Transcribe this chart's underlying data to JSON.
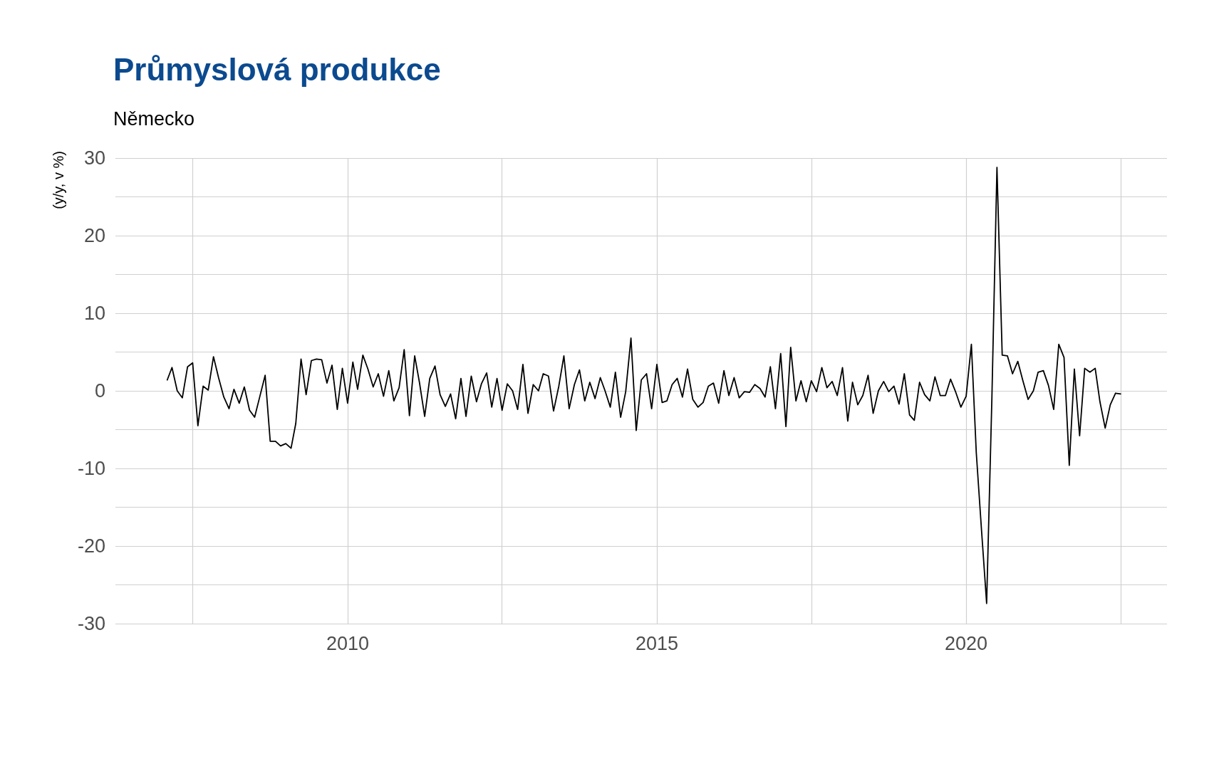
{
  "chart_data": {
    "type": "line",
    "title": "Průmyslová produkce",
    "subtitle": "Německo",
    "ylabel": "(y/y, v %)",
    "x": [
      "2007-02",
      "2007-03",
      "2007-04",
      "2007-05",
      "2007-06",
      "2007-07",
      "2007-08",
      "2007-09",
      "2007-10",
      "2007-11",
      "2007-12",
      "2008-01",
      "2008-02",
      "2008-03",
      "2008-04",
      "2008-05",
      "2008-06",
      "2008-07",
      "2008-08",
      "2008-09",
      "2008-10",
      "2008-11",
      "2008-12",
      "2009-01",
      "2009-02",
      "2009-03",
      "2009-04",
      "2009-05",
      "2009-06",
      "2009-07",
      "2009-08",
      "2009-09",
      "2009-10",
      "2009-11",
      "2009-12",
      "2010-01",
      "2010-02",
      "2010-03",
      "2010-04",
      "2010-05",
      "2010-06",
      "2010-07",
      "2010-08",
      "2010-09",
      "2010-10",
      "2010-11",
      "2010-12",
      "2011-01",
      "2011-02",
      "2011-03",
      "2011-04",
      "2011-05",
      "2011-06",
      "2011-07",
      "2011-08",
      "2011-09",
      "2011-10",
      "2011-11",
      "2011-12",
      "2012-01",
      "2012-02",
      "2012-03",
      "2012-04",
      "2012-05",
      "2012-06",
      "2012-07",
      "2012-08",
      "2012-09",
      "2012-10",
      "2012-11",
      "2012-12",
      "2013-01",
      "2013-02",
      "2013-03",
      "2013-04",
      "2013-05",
      "2013-06",
      "2013-07",
      "2013-08",
      "2013-09",
      "2013-10",
      "2013-11",
      "2013-12",
      "2014-01",
      "2014-02",
      "2014-03",
      "2014-04",
      "2014-05",
      "2014-06",
      "2014-07",
      "2014-08",
      "2014-09",
      "2014-10",
      "2014-11",
      "2014-12",
      "2015-01",
      "2015-02",
      "2015-03",
      "2015-04",
      "2015-05",
      "2015-06",
      "2015-07",
      "2015-08",
      "2015-09",
      "2015-10",
      "2015-11",
      "2015-12",
      "2016-01",
      "2016-02",
      "2016-03",
      "2016-04",
      "2016-05",
      "2016-06",
      "2016-07",
      "2016-08",
      "2016-09",
      "2016-10",
      "2016-11",
      "2016-12",
      "2017-01",
      "2017-02",
      "2017-03",
      "2017-04",
      "2017-05",
      "2017-06",
      "2017-07",
      "2017-08",
      "2017-09",
      "2017-10",
      "2017-11",
      "2017-12",
      "2018-01",
      "2018-02",
      "2018-03",
      "2018-04",
      "2018-05",
      "2018-06",
      "2018-07",
      "2018-08",
      "2018-09",
      "2018-10",
      "2018-11",
      "2018-12",
      "2019-01",
      "2019-02",
      "2019-03",
      "2019-04",
      "2019-05",
      "2019-06",
      "2019-07",
      "2019-08",
      "2019-09",
      "2019-10",
      "2019-11",
      "2019-12",
      "2020-01",
      "2020-02",
      "2020-03",
      "2020-04",
      "2020-05",
      "2020-06",
      "2020-07",
      "2020-08",
      "2020-09",
      "2020-10",
      "2020-11",
      "2020-12",
      "2021-01",
      "2021-02",
      "2021-03",
      "2021-04",
      "2021-05",
      "2021-06",
      "2021-07",
      "2021-08",
      "2021-09",
      "2021-10",
      "2021-11",
      "2021-12",
      "2022-01",
      "2022-02",
      "2022-03",
      "2022-04",
      "2022-05",
      "2022-06",
      "2022-07"
    ],
    "series": [
      {
        "color": "#000000",
        "values": [
          1.4,
          3.0,
          0.0,
          -0.9,
          3.1,
          3.6,
          -4.5,
          0.6,
          0.1,
          4.4,
          1.7,
          -0.8,
          -2.3,
          0.2,
          -1.6,
          0.5,
          -2.5,
          -3.4,
          -0.7,
          2.0,
          -6.5,
          -6.5,
          -7.1,
          -6.8,
          -7.4,
          -4.2,
          4.1,
          -0.5,
          3.9,
          4.1,
          4.0,
          1.0,
          3.3,
          -2.4,
          2.9,
          -1.6,
          3.7,
          0.2,
          4.6,
          2.8,
          0.5,
          2.2,
          -0.7,
          2.6,
          -1.3,
          0.4,
          5.3,
          -3.2,
          4.5,
          1.1,
          -3.3,
          1.6,
          3.2,
          -0.5,
          -2.0,
          -0.4,
          -3.6,
          1.6,
          -3.3,
          1.9,
          -1.4,
          0.9,
          2.3,
          -2.1,
          1.6,
          -2.5,
          0.9,
          0.0,
          -2.4,
          3.4,
          -2.9,
          0.8,
          0.0,
          2.2,
          1.9,
          -2.6,
          0.6,
          4.5,
          -2.3,
          0.8,
          2.7,
          -1.3,
          1.1,
          -1.0,
          1.7,
          0.0,
          -2.1,
          2.4,
          -3.4,
          -0.1,
          6.8,
          -5.1,
          1.4,
          2.2,
          -2.3,
          3.4,
          -1.5,
          -1.3,
          0.8,
          1.6,
          -0.8,
          2.8,
          -1.1,
          -2.1,
          -1.5,
          0.6,
          1.0,
          -1.6,
          2.6,
          -0.6,
          1.7,
          -0.9,
          -0.1,
          -0.2,
          0.8,
          0.3,
          -0.8,
          3.1,
          -2.3,
          4.8,
          -4.6,
          5.6,
          -1.3,
          1.3,
          -1.4,
          1.3,
          -0.1,
          3.0,
          0.4,
          1.2,
          -0.6,
          3.0,
          -3.9,
          1.1,
          -1.8,
          -0.6,
          2.0,
          -2.9,
          0.0,
          1.2,
          -0.1,
          0.6,
          -1.7,
          2.2,
          -3.1,
          -3.8,
          1.1,
          -0.5,
          -1.3,
          1.8,
          -0.6,
          -0.6,
          1.5,
          -0.2,
          -2.1,
          -0.7,
          6.0,
          -8.0,
          -18.0,
          -27.4,
          -1.0,
          28.8,
          4.6,
          4.5,
          2.2,
          3.8,
          1.3,
          -1.1,
          0.0,
          2.4,
          2.6,
          0.7,
          -2.4,
          6.0,
          4.3,
          -9.6,
          2.8,
          -5.8,
          2.9,
          2.4,
          2.9,
          -1.4,
          -4.8,
          -1.8,
          -0.3,
          -0.4
        ]
      }
    ],
    "xlim": [
      "2006-04",
      "2023-04"
    ],
    "xticks": [
      {
        "value": "2007-07",
        "label": null
      },
      {
        "value": "2010-01",
        "label": "2010"
      },
      {
        "value": "2012-07",
        "label": null
      },
      {
        "value": "2015-01",
        "label": "2015"
      },
      {
        "value": "2017-07",
        "label": null
      },
      {
        "value": "2020-01",
        "label": "2020"
      },
      {
        "value": "2022-07",
        "label": null
      }
    ],
    "ylim": [
      -30,
      30
    ],
    "yticks": [
      -30,
      {
        "value": -25,
        "label": null
      },
      -20,
      {
        "value": -15,
        "label": null
      },
      -10,
      {
        "value": -5,
        "label": null
      },
      0,
      {
        "value": 5,
        "label": null
      },
      10,
      {
        "value": 15,
        "label": null
      },
      20,
      {
        "value": 25,
        "label": null
      },
      30
    ],
    "grid": true,
    "marker": "none",
    "line_style": "solid"
  }
}
